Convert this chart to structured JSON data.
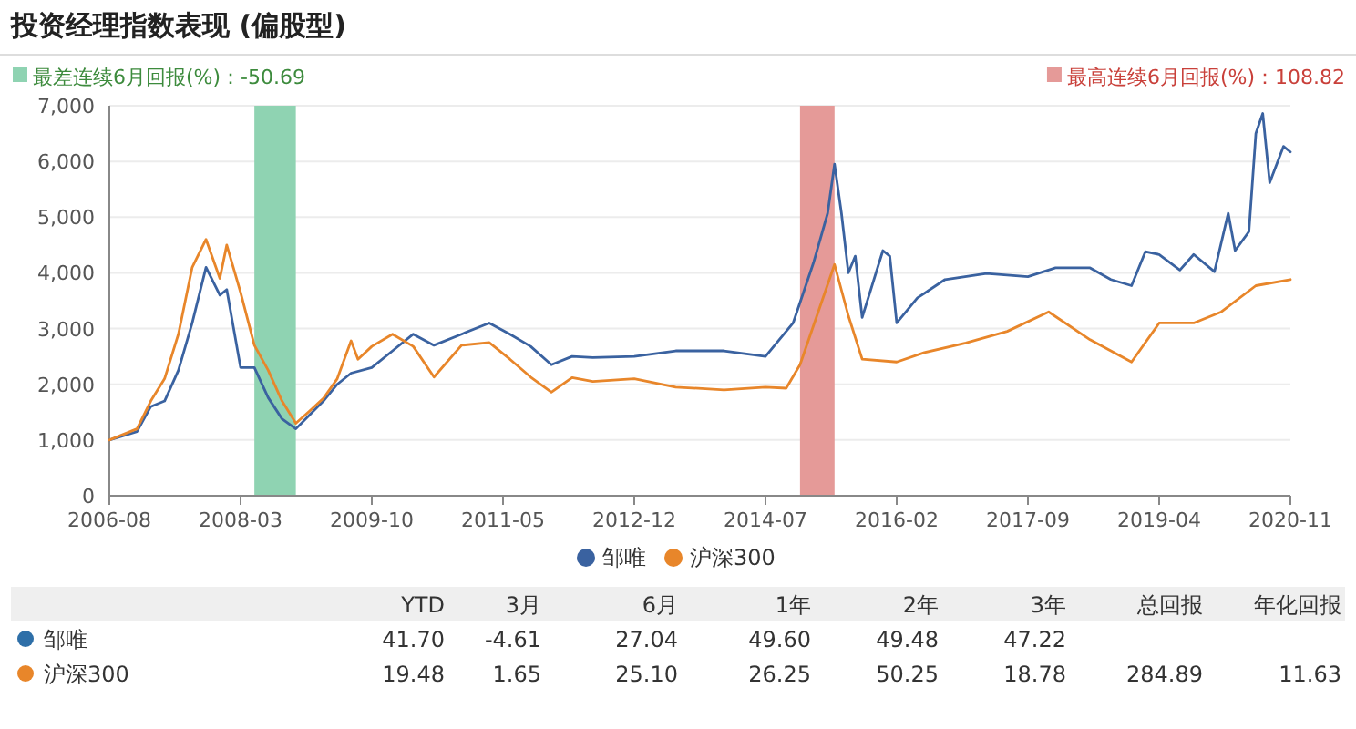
{
  "chart_data": [
    {
      "type": "line",
      "title": "投资经理指数表现 (偏股型)",
      "xlim": [
        "2006-08",
        "2020-11"
      ],
      "xticks": [
        {
          "value": "2006-08",
          "label": "2006-08"
        },
        {
          "value": "2008-03",
          "label": "2008-03"
        },
        {
          "value": "2009-10",
          "label": "2009-10"
        },
        {
          "value": "2011-05",
          "label": "2011-05"
        },
        {
          "value": "2012-12",
          "label": "2012-12"
        },
        {
          "value": "2014-07",
          "label": "2014-07"
        },
        {
          "value": "2016-02",
          "label": "2016-02"
        },
        {
          "value": "2017-09",
          "label": "2017-09"
        },
        {
          "value": "2019-04",
          "label": "2019-04"
        },
        {
          "value": "2020-11",
          "label": "2020-11"
        }
      ],
      "ylim": [
        0,
        7000
      ],
      "yticks": [
        0,
        {
          "value": 1000,
          "label": "1,000"
        },
        {
          "value": 2000,
          "label": "2,000"
        },
        {
          "value": 3000,
          "label": "3,000"
        },
        {
          "value": 4000,
          "label": "4,000"
        },
        {
          "value": 5000,
          "label": "5,000"
        },
        {
          "value": 6000,
          "label": "6,000"
        },
        {
          "value": 7000,
          "label": "7,000"
        }
      ],
      "grid": "y",
      "legend": "bottom",
      "marker": "none",
      "line_style": "solid",
      "bands": [
        {
          "axis": "x",
          "from": "2008-05",
          "to": "2008-11",
          "color": "#8fd3b2",
          "label": "最差连续6月回报(%)：-50.69"
        },
        {
          "axis": "x",
          "from": "2014-12",
          "to": "2015-05",
          "color": "#e59a98",
          "label": "最高连续6月回报(%)：108.82"
        }
      ],
      "series": [
        {
          "name": "邹唯",
          "color": "#3a62a0",
          "x": [
            "2006-08",
            "2006-12",
            "2007-02",
            "2007-04",
            "2007-06",
            "2007-08",
            "2007-10",
            "2007-12",
            "2008-01",
            "2008-03",
            "2008-05",
            "2008-07",
            "2008-09",
            "2008-11",
            "2009-01",
            "2009-03",
            "2009-05",
            "2009-07",
            "2009-10",
            "2010-01",
            "2010-04",
            "2010-07",
            "2010-11",
            "2011-03",
            "2011-06",
            "2011-09",
            "2011-12",
            "2012-03",
            "2012-06",
            "2012-12",
            "2013-06",
            "2014-01",
            "2014-07",
            "2014-11",
            "2015-02",
            "2015-04",
            "2015-05",
            "2015-06",
            "2015-07",
            "2015-08",
            "2015-09",
            "2015-12",
            "2016-01",
            "2016-02",
            "2016-05",
            "2016-09",
            "2017-03",
            "2017-09",
            "2018-01",
            "2018-06",
            "2018-09",
            "2018-12",
            "2019-02",
            "2019-04",
            "2019-07",
            "2019-09",
            "2019-12",
            "2020-02",
            "2020-03",
            "2020-05",
            "2020-06",
            "2020-07",
            "2020-08",
            "2020-10",
            "2020-11"
          ],
          "values": [
            1000,
            1150,
            1600,
            1700,
            2250,
            3100,
            4100,
            3600,
            3700,
            2300,
            2300,
            1760,
            1380,
            1200,
            1450,
            1700,
            2000,
            2200,
            2300,
            2600,
            2900,
            2700,
            2900,
            3100,
            2900,
            2680,
            2350,
            2500,
            2480,
            2500,
            2600,
            2600,
            2500,
            3100,
            4200,
            5070,
            5950,
            5070,
            4000,
            4300,
            3200,
            4400,
            4300,
            3100,
            3550,
            3880,
            3990,
            3930,
            4090,
            4090,
            3880,
            3770,
            4380,
            4330,
            4050,
            4330,
            4020,
            5070,
            4400,
            4740,
            6500,
            6860,
            5620,
            6270,
            6170
          ]
        },
        {
          "name": "沪深300",
          "color": "#e8862a",
          "x": [
            "2006-08",
            "2006-12",
            "2007-02",
            "2007-04",
            "2007-06",
            "2007-08",
            "2007-10",
            "2007-12",
            "2008-01",
            "2008-03",
            "2008-05",
            "2008-07",
            "2008-09",
            "2008-11",
            "2009-01",
            "2009-03",
            "2009-05",
            "2009-07",
            "2009-08",
            "2009-10",
            "2010-01",
            "2010-04",
            "2010-07",
            "2010-11",
            "2011-03",
            "2011-06",
            "2011-09",
            "2011-12",
            "2012-03",
            "2012-06",
            "2012-12",
            "2013-06",
            "2014-01",
            "2014-07",
            "2014-10",
            "2014-12",
            "2015-05",
            "2015-07",
            "2015-09",
            "2016-02",
            "2016-06",
            "2016-12",
            "2017-06",
            "2017-12",
            "2018-06",
            "2018-12",
            "2019-04",
            "2019-09",
            "2020-01",
            "2020-06",
            "2020-11"
          ],
          "values": [
            1000,
            1200,
            1700,
            2100,
            2900,
            4100,
            4600,
            3900,
            4500,
            3650,
            2700,
            2250,
            1700,
            1300,
            1520,
            1750,
            2100,
            2780,
            2450,
            2680,
            2900,
            2680,
            2130,
            2700,
            2750,
            2450,
            2130,
            1860,
            2120,
            2050,
            2100,
            1950,
            1900,
            1950,
            1930,
            2350,
            4150,
            3230,
            2450,
            2400,
            2570,
            2740,
            2950,
            3300,
            2800,
            2400,
            3100,
            3100,
            3300,
            3770,
            3880
          ]
        }
      ]
    },
    {
      "type": "other",
      "categories": [
        "YTD",
        "3月",
        "6月",
        "1年",
        "2年",
        "3年",
        "总回报",
        "年化回报"
      ],
      "data_labels": true,
      "series": [
        {
          "name": "邹唯",
          "color": "#2e6fa8",
          "values": [
            41.7,
            -4.61,
            27.04,
            49.6,
            49.48,
            47.22,
            null,
            null
          ],
          "value_labels": [
            "41.70",
            "-4.61",
            "27.04",
            "49.60",
            "49.48",
            "47.22",
            null,
            null
          ]
        },
        {
          "name": "沪深300",
          "color": "#e8862a",
          "values": [
            19.48,
            1.65,
            25.1,
            26.25,
            50.25,
            18.78,
            284.89,
            11.63
          ],
          "value_labels": [
            "19.48",
            "1.65",
            "25.10",
            "26.25",
            "50.25",
            "18.78",
            "284.89",
            "11.63"
          ]
        }
      ]
    }
  ]
}
